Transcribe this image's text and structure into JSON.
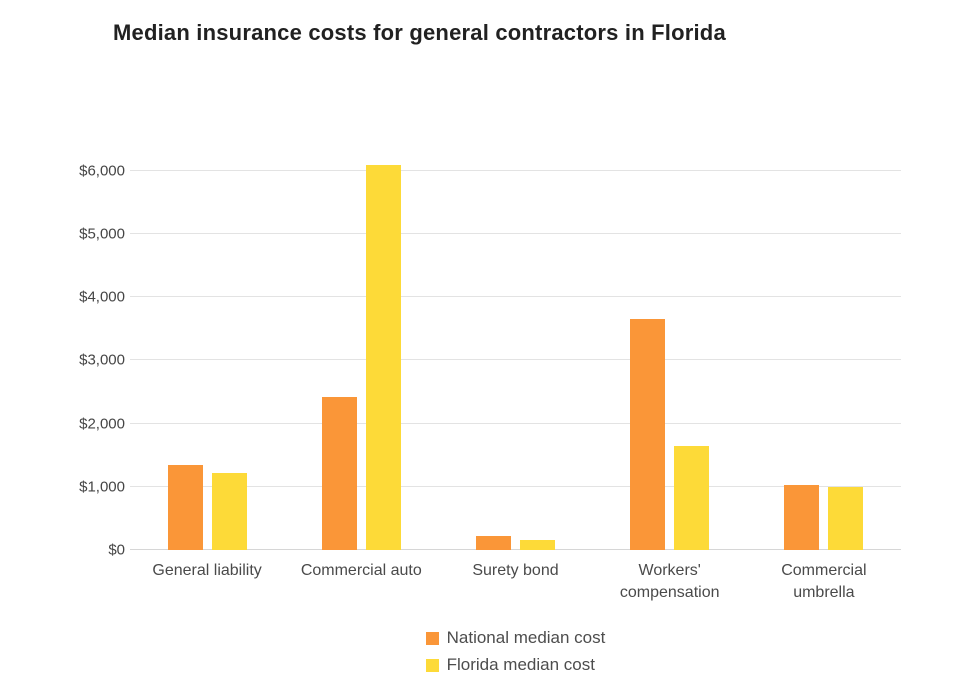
{
  "title": "Median insurance costs for general contractors in Florida",
  "colors": {
    "national_series": "#FA9638",
    "florida_series": "#FDDA38",
    "gridline": "#E3E3E3",
    "baseline": "#D6D6D6",
    "title_text": "#212121",
    "axis_text": "#454545",
    "legend_text": "#4D4D4D"
  },
  "chart_data": {
    "type": "bar",
    "title": "Median insurance costs for general contractors in Florida",
    "categories": [
      "General liability",
      "Commercial auto",
      "Surety bond",
      "Workers' compensation",
      "Commercial umbrella"
    ],
    "category_lines": [
      [
        "General liability"
      ],
      [
        "Commercial auto"
      ],
      [
        "Surety bond"
      ],
      [
        "Workers'",
        "compensation"
      ],
      [
        "Commercial",
        "umbrella"
      ]
    ],
    "series": [
      {
        "name": "National median cost",
        "color": "#FA9638",
        "values": [
          1350,
          2430,
          225,
          3660,
          1030
        ]
      },
      {
        "name": "Florida median cost",
        "color": "#FDDA38",
        "values": [
          1220,
          6090,
          160,
          1640,
          1000
        ]
      }
    ],
    "xlabel": "",
    "ylabel": "",
    "y_ticks": [
      "$0",
      "$1,000",
      "$2,000",
      "$3,000",
      "$4,000",
      "$5,000",
      "$6,000"
    ],
    "y_tick_values": [
      0,
      1000,
      2000,
      3000,
      4000,
      5000,
      6000
    ],
    "ylim": [
      0,
      6490
    ],
    "grid": true,
    "legend_position": "bottom-center"
  },
  "legend": {
    "items": [
      {
        "label": "National median cost",
        "color": "#FA9638"
      },
      {
        "label": "Florida median cost",
        "color": "#FDDA38"
      }
    ]
  }
}
